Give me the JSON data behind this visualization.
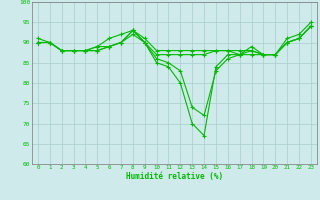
{
  "xlabel": "Humidité relative (%)",
  "xlim": [
    -0.5,
    23.5
  ],
  "ylim": [
    60,
    100
  ],
  "yticks": [
    60,
    65,
    70,
    75,
    80,
    85,
    90,
    95,
    100
  ],
  "xticks": [
    0,
    1,
    2,
    3,
    4,
    5,
    6,
    7,
    8,
    9,
    10,
    11,
    12,
    13,
    14,
    15,
    16,
    17,
    18,
    19,
    20,
    21,
    22,
    23
  ],
  "background_color": "#ceeaea",
  "grid_color": "#a8cccc",
  "line_color": "#00bb00",
  "marker_style": "+",
  "lines": [
    [
      91,
      90,
      88,
      88,
      88,
      89,
      91,
      92,
      93,
      91,
      88,
      88,
      88,
      88,
      88,
      88,
      88,
      88,
      88,
      87,
      87,
      90,
      91,
      94
    ],
    [
      90,
      90,
      88,
      88,
      88,
      89,
      89,
      90,
      92,
      90,
      87,
      87,
      87,
      87,
      87,
      88,
      88,
      87,
      87,
      87,
      87,
      90,
      91,
      94
    ],
    [
      90,
      90,
      88,
      88,
      88,
      88,
      89,
      90,
      93,
      90,
      86,
      85,
      83,
      74,
      72,
      83,
      86,
      87,
      88,
      87,
      87,
      90,
      91,
      94
    ],
    [
      90,
      90,
      88,
      88,
      88,
      88,
      89,
      90,
      93,
      90,
      85,
      84,
      80,
      70,
      67,
      84,
      87,
      87,
      89,
      87,
      87,
      91,
      92,
      95
    ]
  ]
}
